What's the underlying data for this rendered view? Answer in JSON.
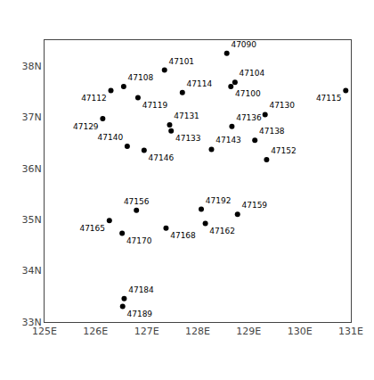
{
  "chart_data": {
    "type": "scatter",
    "x": [
      128.57,
      127.35,
      128.73,
      128.65,
      126.55,
      126.3,
      126.83,
      127.7,
      130.9,
      126.14,
      127.45,
      127.48,
      128.67,
      129.32,
      126.62,
      126.95,
      128.27,
      129.12,
      129.35,
      126.8,
      126.27,
      126.52,
      127.38,
      128.07,
      128.15,
      128.78,
      126.56,
      126.53
    ],
    "y": [
      38.25,
      37.92,
      37.68,
      37.6,
      37.6,
      37.52,
      37.38,
      37.48,
      37.52,
      36.97,
      36.85,
      36.73,
      36.82,
      37.05,
      36.43,
      36.35,
      36.37,
      36.55,
      36.17,
      35.18,
      34.98,
      34.73,
      34.83,
      35.2,
      34.92,
      35.1,
      33.45,
      33.3
    ],
    "labels": [
      "47090",
      "47101",
      "47104",
      "47100",
      "47108",
      "47112",
      "47119",
      "47114",
      "47115",
      "47129",
      "47131",
      "47133",
      "47136",
      "47130",
      "47140",
      "47146",
      "47143",
      "47138",
      "47152",
      "47156",
      "47165",
      "47170",
      "47168",
      "47192",
      "47162",
      "47159",
      "47184",
      "47189"
    ],
    "color": "black",
    "marker": "circle",
    "xlim": [
      125.0,
      131.0
    ],
    "ylim": [
      33.0,
      38.5
    ],
    "xticks": [
      {
        "value": 125,
        "label": "125E"
      },
      {
        "value": 126,
        "label": "126E"
      },
      {
        "value": 127,
        "label": "127E"
      },
      {
        "value": 128,
        "label": "128E"
      },
      {
        "value": 129,
        "label": "129E"
      },
      {
        "value": 130,
        "label": "130E"
      },
      {
        "value": 131,
        "label": "131E"
      }
    ],
    "yticks": [
      {
        "value": 33,
        "label": "33N"
      },
      {
        "value": 34,
        "label": "34N"
      },
      {
        "value": 35,
        "label": "35N"
      },
      {
        "value": 36,
        "label": "36N"
      },
      {
        "value": 37,
        "label": "37N"
      },
      {
        "value": 38,
        "label": "38N"
      }
    ],
    "grid": false
  }
}
